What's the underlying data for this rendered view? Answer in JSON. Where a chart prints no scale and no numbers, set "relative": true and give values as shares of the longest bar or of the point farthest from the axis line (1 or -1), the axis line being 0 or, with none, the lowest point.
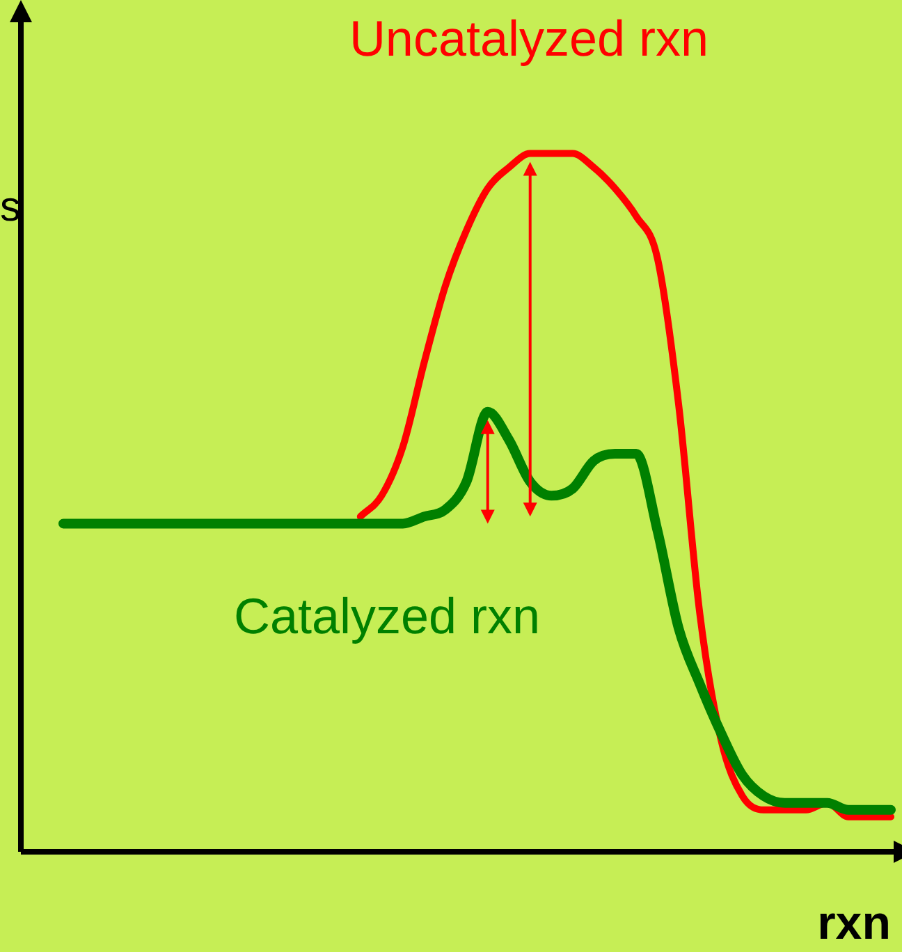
{
  "chart_data": {
    "type": "line",
    "relative": true,
    "xlabel": "rxn",
    "ylabel": "s",
    "legend": false,
    "grid": false,
    "marker": "none",
    "line_style": "solid",
    "categories": [
      null,
      null,
      null,
      null,
      null,
      null,
      null,
      null,
      null,
      null,
      null,
      null,
      null,
      null,
      null,
      null,
      null,
      null,
      null,
      null,
      null,
      null,
      null,
      null,
      null,
      null,
      null,
      null,
      null,
      null,
      null,
      null,
      null,
      null,
      null,
      null,
      null,
      null,
      null,
      null,
      null,
      null
    ],
    "series": [
      {
        "name": "Uncatalyzed rxn",
        "color": "#ff0000",
        "values": [
          null,
          null,
          null,
          null,
          null,
          null,
          null,
          null,
          null,
          null,
          null,
          null,
          null,
          null,
          null,
          null,
          0.48,
          0.51,
          0.58,
          0.7,
          0.81,
          0.89,
          0.95,
          0.98,
          1.0,
          1.0,
          1.0,
          0.98,
          0.95,
          0.91,
          0.85,
          0.64,
          0.34,
          0.16,
          0.08,
          0.06,
          0.06,
          0.06,
          0.07,
          0.05,
          0.05,
          0.05
        ]
      },
      {
        "name": "Catalyzed rxn",
        "color": "#008000",
        "values": [
          null,
          null,
          0.47,
          0.47,
          0.47,
          0.47,
          0.47,
          0.47,
          0.47,
          0.47,
          0.47,
          0.47,
          0.47,
          0.47,
          0.47,
          0.47,
          0.47,
          0.47,
          0.47,
          0.48,
          0.49,
          0.53,
          0.63,
          0.59,
          0.53,
          0.51,
          0.52,
          0.56,
          0.57,
          0.57,
          0.46,
          0.32,
          0.24,
          0.17,
          0.11,
          0.08,
          0.07,
          0.07,
          0.07,
          0.06,
          0.06,
          0.06
        ]
      }
    ]
  }
}
